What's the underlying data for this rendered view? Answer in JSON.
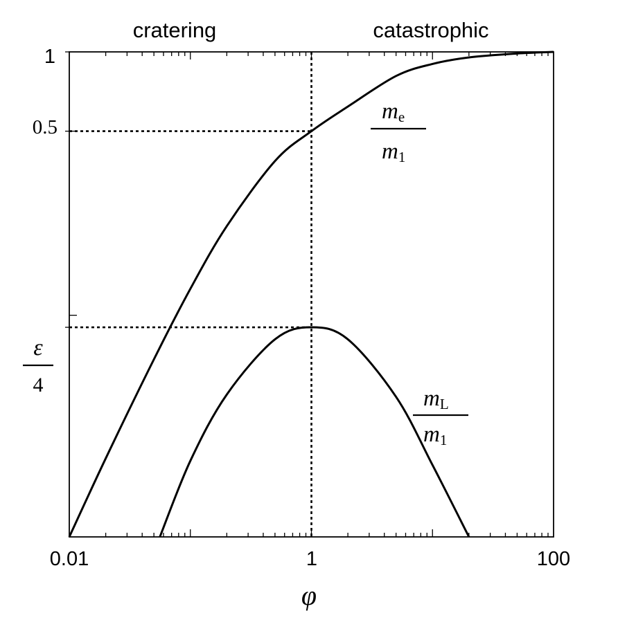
{
  "chart_data": {
    "type": "line",
    "x_scale": "log",
    "y_scale": "log",
    "xlim": [
      0.01,
      100
    ],
    "ylim": [
      0.0144,
      1
    ],
    "x_tick_labels": [
      "0.01",
      "1",
      "100"
    ],
    "y_tick_labels": [
      "1",
      "0.5"
    ],
    "xlabel": "φ",
    "ylabel_fraction": {
      "numerator": "ε",
      "denominator": "4"
    },
    "regions": [
      "cratering",
      "catastrophic"
    ],
    "guide_lines": {
      "phi": 1,
      "y_upper": 0.5,
      "y_lower": 0.09
    },
    "series": [
      {
        "label": {
          "numerator": "m",
          "numerator_sub": "e",
          "denominator": "m",
          "denominator_sub": "1"
        },
        "x": [
          0.01,
          0.02,
          0.05,
          0.1,
          0.2,
          0.5,
          1,
          2,
          5,
          10,
          20,
          50,
          100
        ],
        "y": [
          0.0144,
          0.0286,
          0.068,
          0.126,
          0.218,
          0.385,
          0.5,
          0.62,
          0.81,
          0.9,
          0.953,
          0.986,
          1.0
        ]
      },
      {
        "label": {
          "numerator": "m",
          "numerator_sub": "L",
          "denominator": "m",
          "denominator_sub": "1"
        },
        "x": [
          0.056,
          0.1,
          0.2,
          0.5,
          1,
          2,
          5,
          10,
          20
        ],
        "y": [
          0.0144,
          0.028,
          0.05,
          0.081,
          0.09,
          0.081,
          0.049,
          0.027,
          0.0144
        ]
      }
    ],
    "grid": false,
    "legend": "inline labels"
  }
}
